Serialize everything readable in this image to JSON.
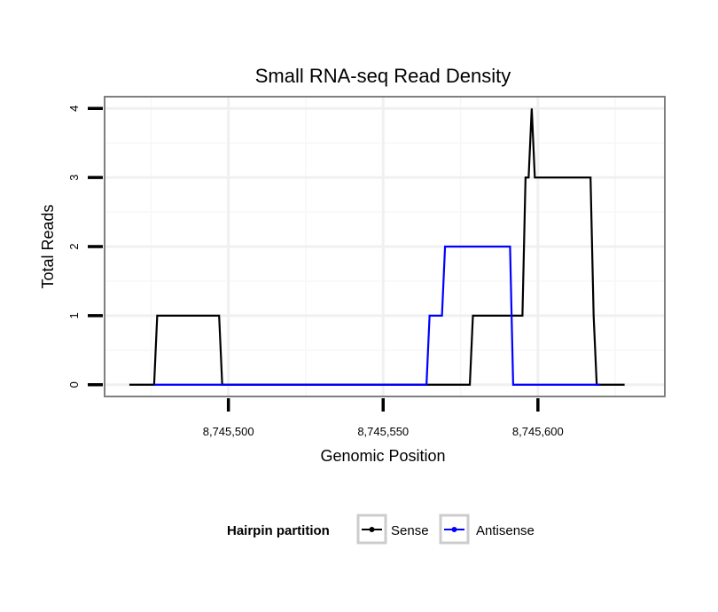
{
  "chart_data": {
    "type": "line",
    "title": "Small RNA-seq Read Density",
    "xlabel": "Genomic Position",
    "ylabel": "Total Reads",
    "xlim": [
      8745460,
      8745641
    ],
    "ylim": [
      -0.17,
      4.17
    ],
    "x_ticks": [
      {
        "value": 8745500,
        "label": "8,745,500"
      },
      {
        "value": 8745550,
        "label": "8,745,550"
      },
      {
        "value": 8745600,
        "label": "8,745,600"
      }
    ],
    "y_ticks": [
      {
        "value": 0,
        "label": "0"
      },
      {
        "value": 1,
        "label": "1"
      },
      {
        "value": 2,
        "label": "2"
      },
      {
        "value": 3,
        "label": "3"
      },
      {
        "value": 4,
        "label": "4"
      }
    ],
    "grid": true,
    "legend": {
      "title": "Hairpin partition",
      "position": "bottom"
    },
    "series": [
      {
        "name": "Sense",
        "color": "#000000",
        "x": [
          8745468,
          8745476,
          8745477,
          8745497,
          8745498,
          8745578,
          8745579,
          8745595,
          8745596,
          8745597,
          8745598,
          8745599,
          8745600,
          8745617,
          8745618,
          8745619,
          8745628
        ],
        "y": [
          0,
          0,
          1,
          1,
          0,
          0,
          1,
          1,
          3,
          3,
          4,
          3,
          3,
          3,
          1,
          0,
          0
        ]
      },
      {
        "name": "Antisense",
        "color": "#0000ff",
        "x": [
          8745476,
          8745497,
          8745564,
          8745565,
          8745569,
          8745570,
          8745591,
          8745592,
          8745620
        ],
        "y": [
          0,
          0,
          0,
          1,
          1,
          2,
          2,
          0,
          0
        ]
      }
    ]
  }
}
